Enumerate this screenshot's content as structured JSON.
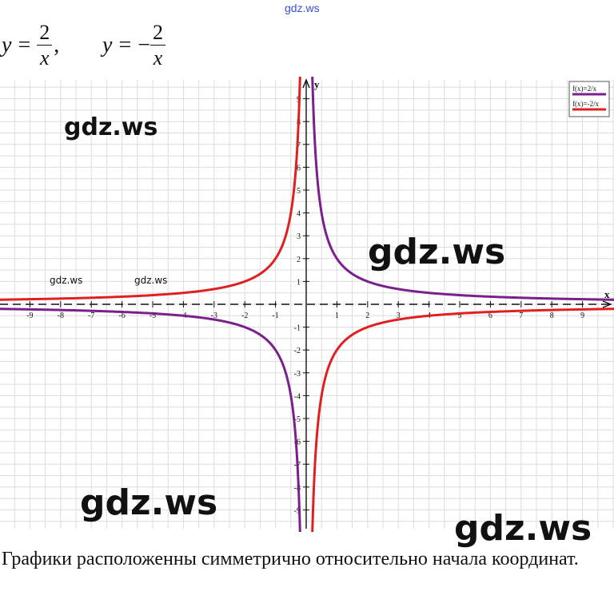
{
  "watermark": {
    "top": "gdz.ws",
    "main": "gdz.ws",
    "small": "gdz.ws"
  },
  "formulas": [
    {
      "lhs": "y",
      "eq": "=",
      "sign": "",
      "numerator": "2",
      "denominator": "x",
      "suffix": ","
    },
    {
      "lhs": "y",
      "eq": "=",
      "sign": "−",
      "numerator": "2",
      "denominator": "x",
      "suffix": ""
    }
  ],
  "chart_data": {
    "type": "line",
    "xlabel": "x",
    "ylabel": "y",
    "xlim": [
      -10,
      10
    ],
    "ylim": [
      -10,
      10
    ],
    "grid": true,
    "legend_position": "top-right",
    "x_ticks": [
      -9,
      -8,
      -7,
      -6,
      -5,
      -4,
      -3,
      -2,
      -1,
      1,
      2,
      3,
      4,
      5,
      6,
      7,
      8,
      9
    ],
    "y_ticks": [
      -9,
      -8,
      -7,
      -6,
      -5,
      -4,
      -3,
      -2,
      -1,
      1,
      2,
      3,
      4,
      5,
      6,
      7,
      8,
      9
    ],
    "x_tick_labels": [
      "-9",
      "-8",
      "-7",
      "-6",
      "-5",
      "-4",
      "-3",
      "-2",
      "-1",
      "1",
      "2",
      "3",
      "4",
      "5",
      "6",
      "7",
      "8",
      "9"
    ],
    "y_tick_labels": [
      "9",
      "8",
      "7",
      "6",
      "5",
      "4",
      "3",
      "2",
      "1",
      "-1",
      "-2",
      "-3",
      "-4",
      "-5",
      "-6",
      "-7",
      "-8",
      "-9"
    ],
    "series": [
      {
        "name": "f(x)=2/x",
        "k": 2,
        "color": "#7a1f8c"
      },
      {
        "name": "f(x)=-2/x",
        "k": -2,
        "color": "#e02020"
      }
    ]
  },
  "caption": "Графики расположенны симметрично относительно начала координат."
}
